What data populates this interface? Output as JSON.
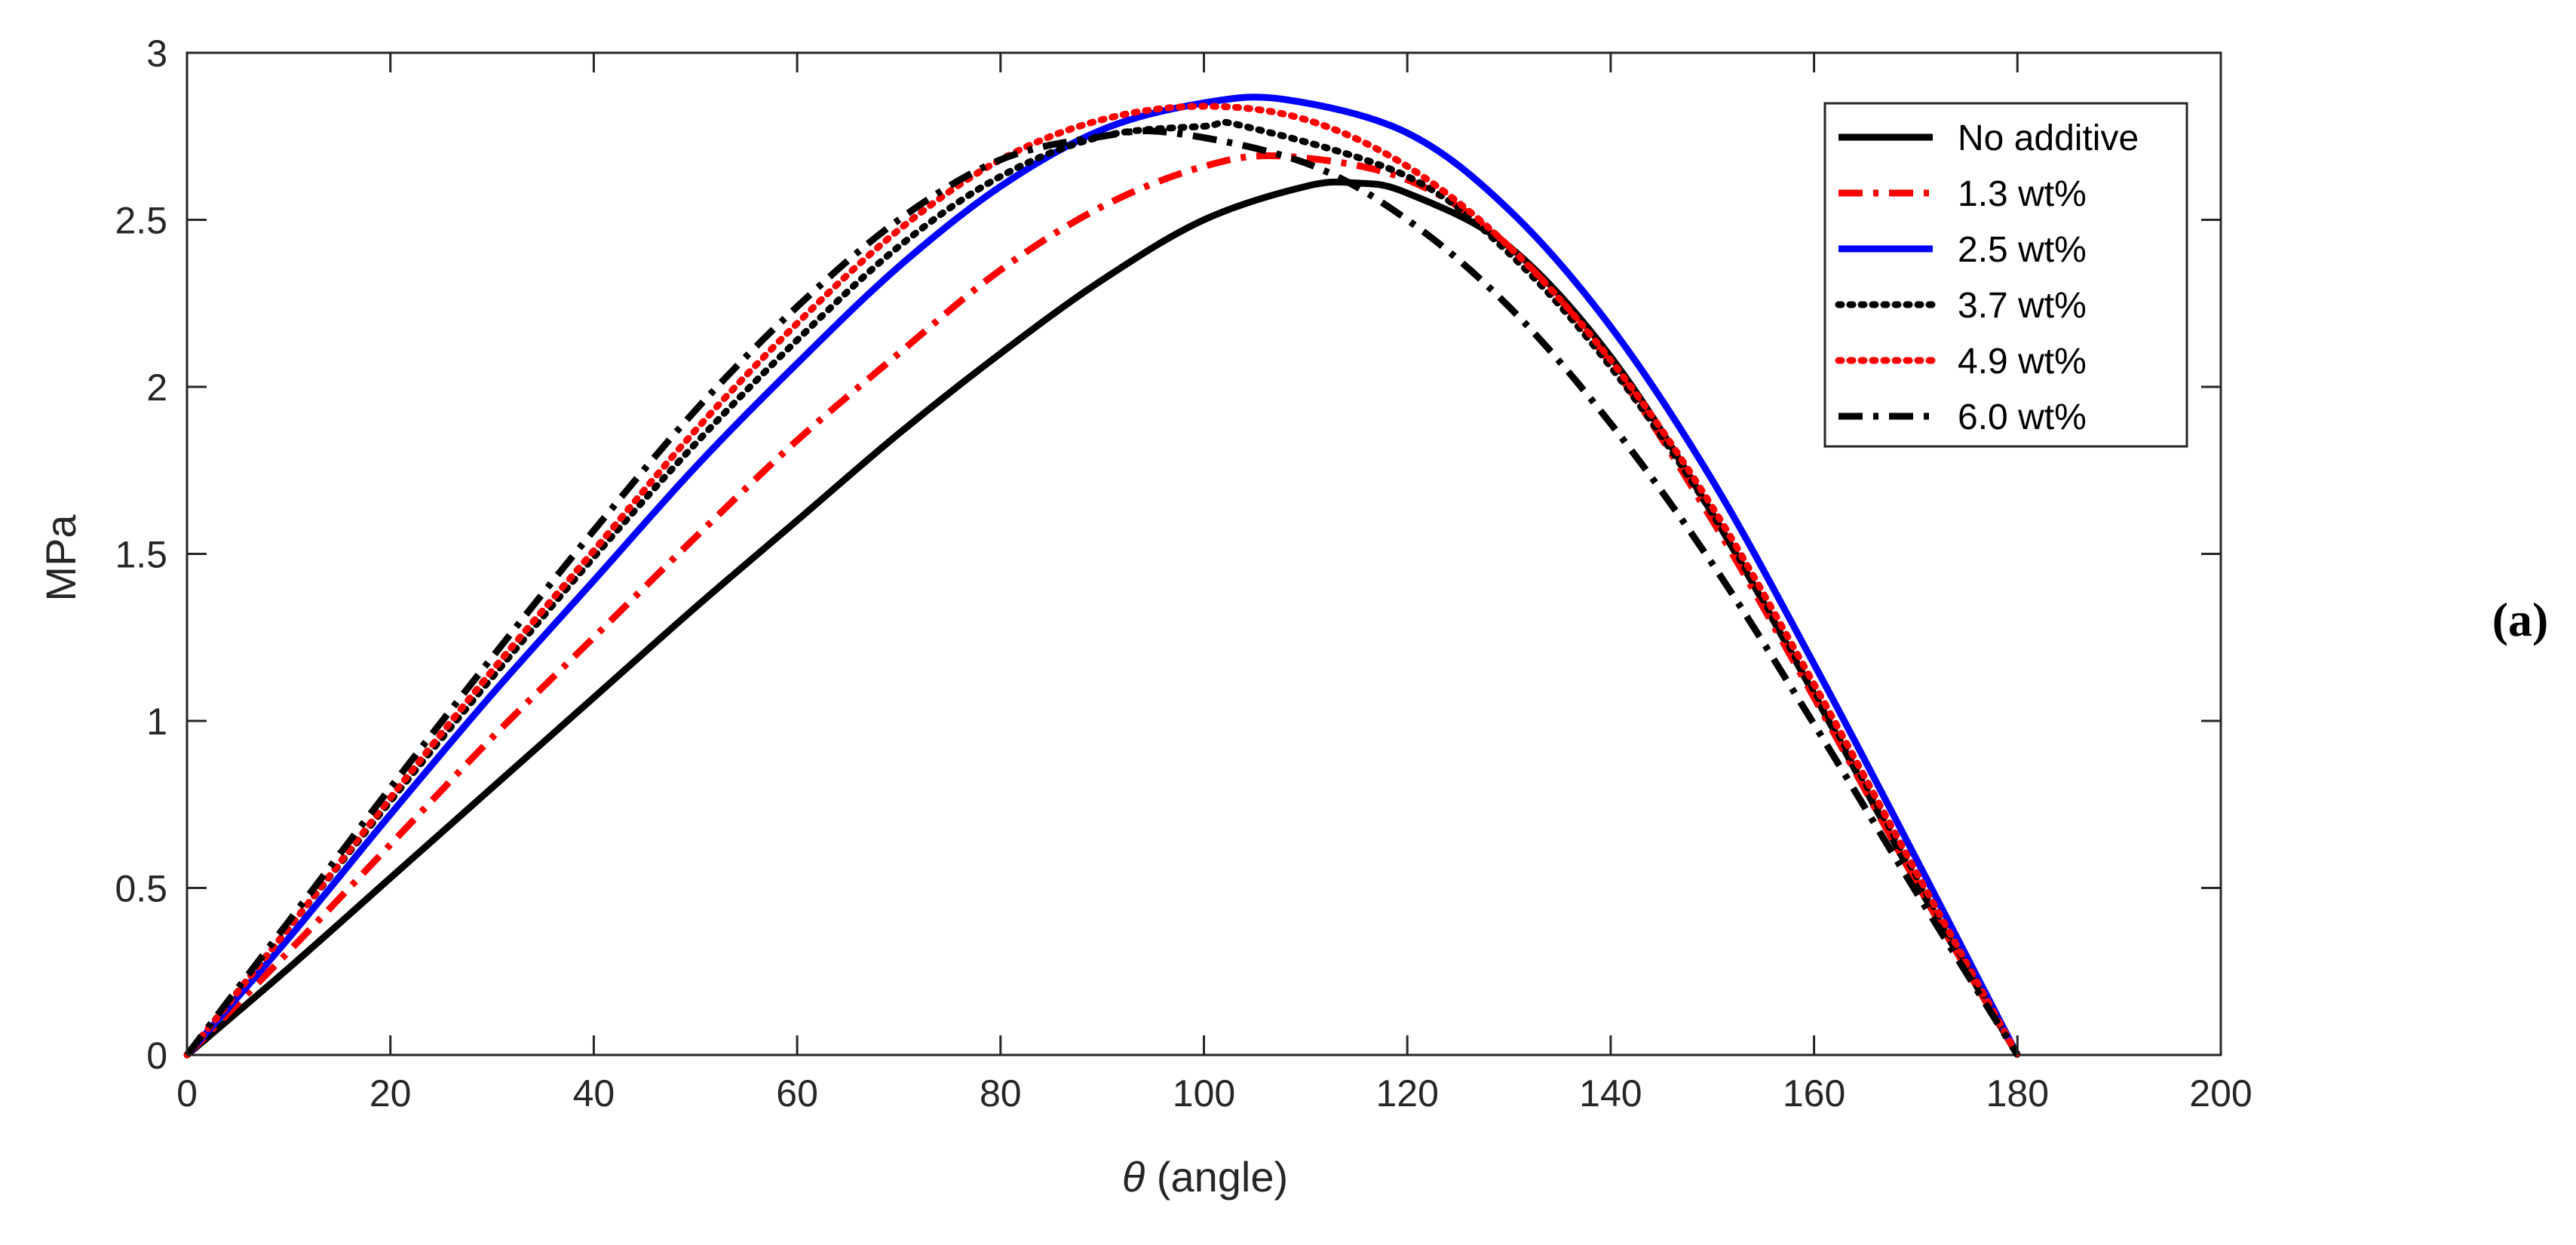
{
  "panel_label": "(a)",
  "chart_data": {
    "type": "line",
    "title": "",
    "xlabel_symbol": "θ",
    "xlabel_text": " (angle)",
    "ylabel": "MPa",
    "xlim": [
      0,
      200
    ],
    "ylim": [
      0,
      3
    ],
    "xticks": [
      0,
      20,
      40,
      60,
      80,
      100,
      120,
      140,
      160,
      180,
      200
    ],
    "yticks": [
      0,
      0.5,
      1,
      1.5,
      2,
      2.5,
      3
    ],
    "grid": false,
    "legend_position": "top-right",
    "series": [
      {
        "name": "No additive",
        "color": "#000000",
        "style": "solid",
        "x": [
          0,
          10,
          20,
          30,
          40,
          50,
          60,
          70,
          80,
          90,
          100,
          110,
          115,
          120,
          130,
          140,
          150,
          160,
          170,
          180
        ],
        "y": [
          0,
          0.26,
          0.53,
          0.8,
          1.07,
          1.34,
          1.6,
          1.86,
          2.1,
          2.32,
          2.5,
          2.6,
          2.61,
          2.58,
          2.42,
          2.09,
          1.62,
          1.08,
          0.52,
          0
        ]
      },
      {
        "name": "1.3 wt%",
        "color": "#ff0000",
        "style": "dashdot",
        "x": [
          0,
          10,
          20,
          30,
          40,
          50,
          60,
          70,
          80,
          90,
          100,
          108,
          120,
          130,
          140,
          150,
          160,
          170,
          180
        ],
        "y": [
          0,
          0.31,
          0.63,
          0.95,
          1.25,
          1.55,
          1.84,
          2.1,
          2.35,
          2.54,
          2.66,
          2.69,
          2.62,
          2.42,
          2.07,
          1.6,
          1.07,
          0.52,
          0
        ]
      },
      {
        "name": "2.5 wt%",
        "color": "#0000ff",
        "style": "solid",
        "x": [
          0,
          10,
          20,
          30,
          40,
          50,
          60,
          70,
          80,
          90,
          100,
          108,
          120,
          130,
          140,
          150,
          160,
          170,
          180
        ],
        "y": [
          0,
          0.35,
          0.72,
          1.08,
          1.42,
          1.76,
          2.07,
          2.36,
          2.6,
          2.77,
          2.85,
          2.86,
          2.76,
          2.53,
          2.18,
          1.72,
          1.17,
          0.59,
          0
        ]
      },
      {
        "name": "3.7 wt%",
        "color": "#000000",
        "style": "dotted",
        "x": [
          0,
          10,
          20,
          30,
          40,
          50,
          60,
          70,
          80,
          90,
          100,
          104,
          120,
          130,
          140,
          150,
          160,
          170,
          180
        ],
        "y": [
          0,
          0.38,
          0.76,
          1.13,
          1.49,
          1.83,
          2.14,
          2.42,
          2.63,
          2.75,
          2.78,
          2.78,
          2.63,
          2.4,
          2.06,
          1.62,
          1.09,
          0.54,
          0
        ]
      },
      {
        "name": "4.9 wt%",
        "color": "#ff0000",
        "style": "dotted",
        "x": [
          0,
          10,
          20,
          30,
          40,
          50,
          60,
          70,
          80,
          90,
          100,
          110,
          120,
          130,
          140,
          150,
          160,
          170,
          180
        ],
        "y": [
          0,
          0.38,
          0.77,
          1.15,
          1.51,
          1.87,
          2.19,
          2.47,
          2.68,
          2.8,
          2.84,
          2.8,
          2.66,
          2.42,
          2.08,
          1.64,
          1.11,
          0.55,
          0
        ]
      },
      {
        "name": "6.0 wt%",
        "color": "#000000",
        "style": "dashdot",
        "x": [
          0,
          10,
          20,
          30,
          40,
          50,
          60,
          70,
          80,
          90,
          97,
          110,
          120,
          130,
          140,
          150,
          160,
          170,
          180
        ],
        "y": [
          0,
          0.4,
          0.8,
          1.19,
          1.57,
          1.93,
          2.24,
          2.5,
          2.68,
          2.75,
          2.76,
          2.67,
          2.5,
          2.24,
          1.89,
          1.47,
          0.99,
          0.49,
          0
        ]
      }
    ]
  }
}
